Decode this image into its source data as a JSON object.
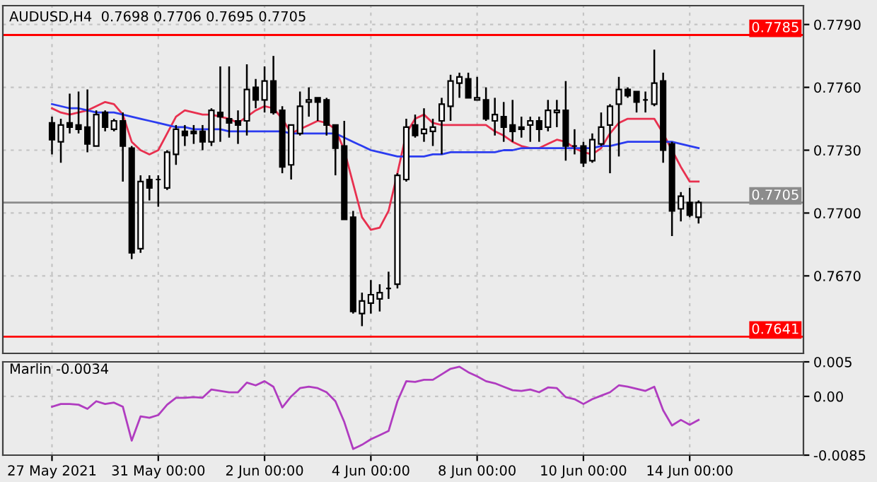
{
  "chart_data": [
    {
      "type": "candlestick",
      "title": "AUDUSD,H4  0.7698 0.7706 0.7695 0.7705",
      "categories": [
        null,
        null,
        null,
        null,
        null,
        null,
        null,
        null,
        null,
        null,
        null,
        null,
        null,
        null,
        null,
        null,
        null,
        null,
        null,
        null,
        null,
        null,
        null,
        null,
        null,
        null,
        null,
        null,
        null,
        null,
        null,
        null,
        null,
        null,
        null,
        null,
        null,
        null,
        null,
        null,
        null,
        null,
        null,
        null,
        null,
        null,
        null,
        null,
        null,
        null,
        null,
        null,
        null,
        null,
        null,
        null,
        null,
        null,
        null,
        null,
        null,
        null,
        null,
        null,
        null,
        null,
        null,
        null,
        null,
        null,
        null,
        null,
        null,
        null
      ],
      "ohlc": [
        [
          0.7743,
          0.7746,
          0.7728,
          0.7735
        ],
        [
          0.7734,
          0.7745,
          0.7724,
          0.7742
        ],
        [
          0.7743,
          0.7757,
          0.7738,
          0.7741
        ],
        [
          0.7742,
          0.7758,
          0.7738,
          0.774
        ],
        [
          0.7741,
          0.7759,
          0.7729,
          0.7733
        ],
        [
          0.7732,
          0.7749,
          0.7732,
          0.7747
        ],
        [
          0.7748,
          0.7749,
          0.7739,
          0.7741
        ],
        [
          0.774,
          0.7745,
          0.7739,
          0.7744
        ],
        [
          0.7744,
          0.7748,
          0.7715,
          0.7732
        ],
        [
          0.7731,
          0.7732,
          0.7678,
          0.7681
        ],
        [
          0.7683,
          0.7718,
          0.7681,
          0.7715
        ],
        [
          0.7716,
          0.7718,
          0.7706,
          0.7712
        ],
        [
          0.7716,
          0.7718,
          0.7703,
          0.7716
        ],
        [
          0.7712,
          0.773,
          0.7711,
          0.7729
        ],
        [
          0.7728,
          0.7742,
          0.7723,
          0.774
        ],
        [
          0.7739,
          0.7742,
          0.7732,
          0.7737
        ],
        [
          0.7739,
          0.7742,
          0.7733,
          0.7738
        ],
        [
          0.7739,
          0.7742,
          0.773,
          0.7734
        ],
        [
          0.7734,
          0.775,
          0.7732,
          0.7749
        ],
        [
          0.7748,
          0.777,
          0.7734,
          0.7746
        ],
        [
          0.7745,
          0.777,
          0.7736,
          0.7743
        ],
        [
          0.7744,
          0.7749,
          0.7733,
          0.7742
        ],
        [
          0.7744,
          0.7771,
          0.7737,
          0.7759
        ],
        [
          0.776,
          0.7764,
          0.775,
          0.7754
        ],
        [
          0.7754,
          0.777,
          0.7748,
          0.7763
        ],
        [
          0.7763,
          0.7775,
          0.7747,
          0.7748
        ],
        [
          0.7749,
          0.7751,
          0.7719,
          0.7722
        ],
        [
          0.7723,
          0.7742,
          0.7716,
          0.7742
        ],
        [
          0.7738,
          0.7758,
          0.7737,
          0.7751
        ],
        [
          0.7753,
          0.776,
          0.7746,
          0.7754
        ],
        [
          0.7755,
          0.7755,
          0.7744,
          0.7753
        ],
        [
          0.7754,
          0.7755,
          0.7737,
          0.7742
        ],
        [
          0.7742,
          0.7742,
          0.7718,
          0.7731
        ],
        [
          0.7732,
          0.7744,
          0.7697,
          0.7697
        ],
        [
          0.7698,
          0.7701,
          0.7652,
          0.7653
        ],
        [
          0.7652,
          0.7662,
          0.7646,
          0.7658
        ],
        [
          0.7657,
          0.7668,
          0.7652,
          0.7661
        ],
        [
          0.7659,
          0.7666,
          0.7653,
          0.7662
        ],
        [
          0.7664,
          0.7672,
          0.7659,
          0.7664
        ],
        [
          0.7666,
          0.7719,
          0.7664,
          0.7718
        ],
        [
          0.7716,
          0.7745,
          0.7715,
          0.7741
        ],
        [
          0.7742,
          0.7747,
          0.7736,
          0.7737
        ],
        [
          0.7738,
          0.775,
          0.7734,
          0.774
        ],
        [
          0.7739,
          0.7745,
          0.7732,
          0.7741
        ],
        [
          0.7744,
          0.7755,
          0.7728,
          0.7752
        ],
        [
          0.7751,
          0.7766,
          0.7744,
          0.7763
        ],
        [
          0.7762,
          0.7767,
          0.7755,
          0.7765
        ],
        [
          0.7764,
          0.7767,
          0.7755,
          0.7755
        ],
        [
          0.7754,
          0.7765,
          0.7754,
          0.7755
        ],
        [
          0.7754,
          0.776,
          0.7744,
          0.7745
        ],
        [
          0.7744,
          0.7755,
          0.7737,
          0.7747
        ],
        [
          0.7746,
          0.7753,
          0.7734,
          0.7741
        ],
        [
          0.7742,
          0.7754,
          0.7734,
          0.7739
        ],
        [
          0.7741,
          0.7746,
          0.7736,
          0.774
        ],
        [
          0.7742,
          0.7746,
          0.7734,
          0.7744
        ],
        [
          0.7744,
          0.7746,
          0.7734,
          0.774
        ],
        [
          0.7741,
          0.7754,
          0.7739,
          0.7749
        ],
        [
          0.7748,
          0.7754,
          0.7741,
          0.7749
        ],
        [
          0.7749,
          0.7763,
          0.7725,
          0.7732
        ],
        [
          0.7732,
          0.774,
          0.7728,
          0.7732
        ],
        [
          0.7732,
          0.7734,
          0.7722,
          0.7724
        ],
        [
          0.7725,
          0.7738,
          0.7724,
          0.7735
        ],
        [
          0.7733,
          0.7748,
          0.7732,
          0.7741
        ],
        [
          0.7742,
          0.7752,
          0.7719,
          0.7751
        ],
        [
          0.7752,
          0.7765,
          0.7727,
          0.7759
        ],
        [
          0.7759,
          0.776,
          0.7755,
          0.7756
        ],
        [
          0.7758,
          0.7758,
          0.7748,
          0.7753
        ],
        [
          0.7754,
          0.7758,
          0.7748,
          0.7754
        ],
        [
          0.7752,
          0.7778,
          0.7751,
          0.7762
        ],
        [
          0.7763,
          0.7767,
          0.7724,
          0.773
        ],
        [
          0.7733,
          0.7734,
          0.7689,
          0.7701
        ],
        [
          0.7702,
          0.771,
          0.7696,
          0.7708
        ],
        [
          0.7705,
          0.7712,
          0.7698,
          0.7699
        ],
        [
          0.7698,
          0.7706,
          0.7695,
          0.7705
        ]
      ],
      "series": [
        {
          "type": "line",
          "color": "#e8304f",
          "values": [
            0.775,
            0.7748,
            0.7747,
            0.7748,
            0.7749,
            0.7751,
            0.7753,
            0.7752,
            0.7747,
            0.7734,
            0.773,
            0.7728,
            0.773,
            0.7738,
            0.7746,
            0.7749,
            0.7748,
            0.7747,
            0.7747,
            0.7746,
            0.7745,
            0.7743,
            0.7746,
            0.7749,
            0.7751,
            0.775,
            0.7745,
            0.7738,
            0.774,
            0.7742,
            0.7744,
            0.7743,
            0.774,
            0.773,
            0.7714,
            0.7698,
            0.7692,
            0.7693,
            0.7701,
            0.7719,
            0.7738,
            0.7745,
            0.7747,
            0.7743,
            0.7742,
            0.7742,
            0.7742,
            0.7742,
            0.7742,
            0.7742,
            0.7739,
            0.7737,
            0.7734,
            0.7732,
            0.7731,
            0.7731,
            0.7733,
            0.7735,
            0.7734,
            0.7731,
            0.7729,
            0.7728,
            0.7731,
            0.7738,
            0.7743,
            0.7745,
            0.7745,
            0.7745,
            0.7745,
            0.7738,
            0.773,
            0.7722,
            0.7715,
            0.7715
          ]
        },
        {
          "type": "line",
          "color": "#2b3cf0",
          "values": [
            0.7752,
            0.7751,
            0.775,
            0.775,
            0.7749,
            0.7748,
            0.7748,
            0.7748,
            0.7747,
            0.7746,
            0.7745,
            0.7744,
            0.7743,
            0.7742,
            0.7741,
            0.7741,
            0.774,
            0.774,
            0.774,
            0.774,
            0.7739,
            0.7739,
            0.7739,
            0.7739,
            0.7739,
            0.7739,
            0.7739,
            0.7738,
            0.7738,
            0.7738,
            0.7738,
            0.7738,
            0.7738,
            0.7736,
            0.7734,
            0.7732,
            0.773,
            0.7729,
            0.7728,
            0.7727,
            0.7727,
            0.7727,
            0.7727,
            0.7728,
            0.7728,
            0.7729,
            0.7729,
            0.7729,
            0.7729,
            0.7729,
            0.7729,
            0.773,
            0.773,
            0.7731,
            0.7731,
            0.7731,
            0.7731,
            0.7731,
            0.7731,
            0.7731,
            0.7731,
            0.7731,
            0.7732,
            0.7732,
            0.7733,
            0.7734,
            0.7734,
            0.7734,
            0.7734,
            0.7734,
            0.7734,
            0.7733,
            0.7732,
            0.7731
          ]
        }
      ],
      "ylim": [
        0.7633,
        0.7799
      ],
      "yticks": [
        {
          "value": 0.779,
          "label": "0.7790"
        },
        {
          "value": 0.776,
          "label": "0.7760"
        },
        {
          "value": 0.773,
          "label": "0.7730"
        },
        {
          "value": 0.77,
          "label": "0.7700"
        },
        {
          "value": 0.767,
          "label": "0.7670"
        }
      ],
      "ref_lines": [
        {
          "axis": "y",
          "value": 0.7785,
          "label": "0.7785",
          "color": "#ff0000"
        },
        {
          "axis": "y",
          "value": 0.7641,
          "label": "0.7641",
          "color": "#ff0000"
        },
        {
          "axis": "y",
          "value": 0.7705,
          "label": "0.7705",
          "color": "#8c8c8c"
        }
      ],
      "grid": true,
      "tick_labels": "y"
    },
    {
      "type": "line",
      "title": "Marlin -0.0034",
      "categories": [
        "27 May 2021",
        null,
        null,
        null,
        null,
        null,
        null,
        null,
        null,
        null,
        null,
        null,
        "31 May 00:00",
        null,
        null,
        null,
        null,
        null,
        null,
        null,
        null,
        null,
        null,
        null,
        "2 Jun 00:00",
        null,
        null,
        null,
        null,
        null,
        null,
        null,
        null,
        null,
        null,
        null,
        "4 Jun 00:00",
        null,
        null,
        null,
        null,
        null,
        null,
        null,
        null,
        null,
        null,
        null,
        "8 Jun 00:00",
        null,
        null,
        null,
        null,
        null,
        null,
        null,
        null,
        null,
        null,
        null,
        "10 Jun 00:00",
        null,
        null,
        null,
        null,
        null,
        null,
        null,
        null,
        null,
        null,
        null,
        "14 Jun 00:00",
        null
      ],
      "series": [
        {
          "color": "#b03cc0",
          "values": [
            -0.0015,
            -0.0011,
            -0.0011,
            -0.0012,
            -0.0018,
            -0.0007,
            -0.0011,
            -0.0009,
            -0.0015,
            -0.0064,
            -0.0029,
            -0.0031,
            -0.0027,
            -0.0012,
            -0.0002,
            -0.0002,
            -0.0001,
            -0.0002,
            0.001,
            0.0008,
            0.0006,
            0.0006,
            0.002,
            0.0016,
            0.0022,
            0.0014,
            -0.0016,
            0.0,
            0.0012,
            0.0014,
            0.0012,
            0.0006,
            -0.0007,
            -0.0037,
            -0.0076,
            -0.007,
            -0.0062,
            -0.0056,
            -0.005,
            -0.0007,
            0.0022,
            0.0021,
            0.0024,
            0.0024,
            0.0032,
            0.004,
            0.0043,
            0.0035,
            0.0029,
            0.0022,
            0.0019,
            0.0014,
            0.0009,
            0.0008,
            0.001,
            0.0006,
            0.0013,
            0.0012,
            -0.0001,
            -0.0004,
            -0.0011,
            -0.0004,
            0.0001,
            0.0006,
            0.0016,
            0.0014,
            0.0011,
            0.0008,
            0.0014,
            -0.002,
            -0.0042,
            -0.0034,
            -0.0041,
            -0.0034
          ]
        }
      ],
      "ylim": [
        -0.0085,
        0.005
      ],
      "yticks": [
        0.005,
        {
          "value": 0,
          "label": "0.00"
        },
        -0.0085
      ],
      "grid": true
    }
  ]
}
